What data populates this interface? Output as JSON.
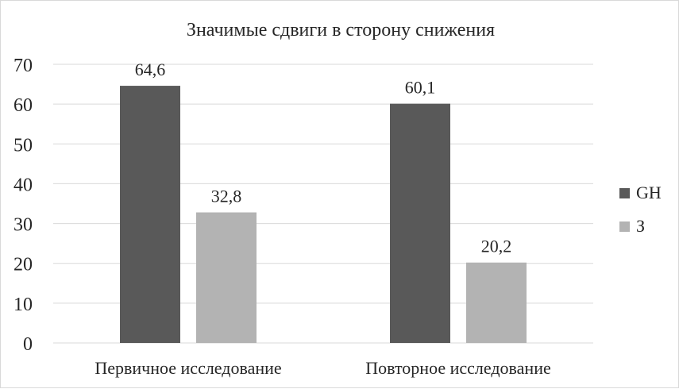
{
  "chart_data": {
    "type": "bar",
    "title": "Значимые сдвиги в сторону снижения",
    "categories": [
      "Первичное исследование",
      "Повторное исследование"
    ],
    "series": [
      {
        "name": "GH",
        "values": [
          64.6,
          60.1
        ],
        "labels": [
          "64,6",
          "60,1"
        ],
        "color": "#595959"
      },
      {
        "name": "З",
        "values": [
          32.8,
          20.2
        ],
        "labels": [
          "32,8",
          "20,2"
        ],
        "color": "#b3b3b3"
      }
    ],
    "ylim": [
      0,
      70
    ],
    "yticks": [
      0,
      10,
      20,
      30,
      40,
      50,
      60,
      70
    ],
    "grid": true,
    "legend": "right",
    "gridColor": "#d9d9d9",
    "textColor": "#262626"
  }
}
